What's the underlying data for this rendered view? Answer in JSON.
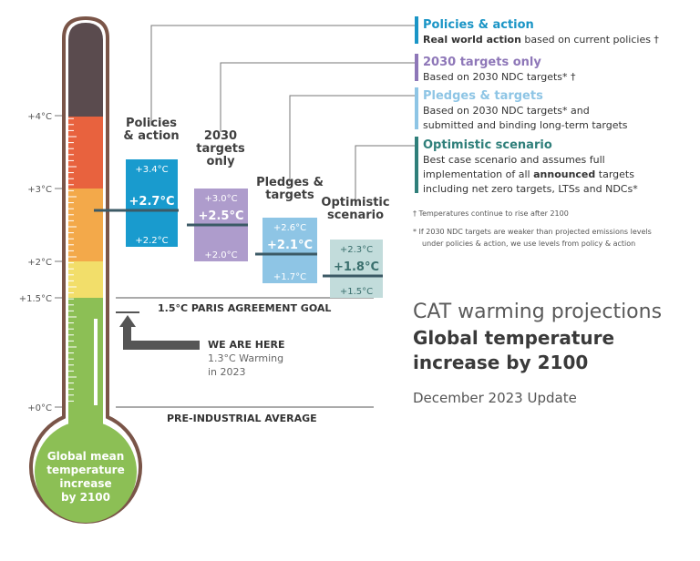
{
  "thermometer": {
    "ticks": [
      {
        "label": "+4°C",
        "t": 4.0
      },
      {
        "label": "+3°C",
        "t": 3.0
      },
      {
        "label": "+2°C",
        "t": 2.0
      },
      {
        "label": "+1.5°C",
        "t": 1.5
      },
      {
        "label": "+0°C",
        "t": 0.0
      }
    ],
    "bulb_lines": [
      "Global mean",
      "temperature",
      "increase",
      "by 2100"
    ],
    "colors": {
      "outline": "#7a5548",
      "top": "#5a4b4e",
      "red": "#e8623e",
      "orange": "#f3a94a",
      "yellow": "#f2de6a",
      "green": "#8cbf55"
    }
  },
  "reference_lines": {
    "paris_goal": "1.5°C PARIS AGREEMENT GOAL",
    "pre_industrial": "PRE-INDUSTRIAL AVERAGE"
  },
  "we_are_here": {
    "title": "WE ARE HERE",
    "line1": "1.3°C Warming",
    "line2": "in 2023",
    "value": 1.3
  },
  "chart_data": {
    "type": "range",
    "ylabel": "",
    "unit": "°C",
    "ylim": [
      0,
      5
    ],
    "scenarios": [
      {
        "title_lines": [
          "Policies",
          "& action"
        ],
        "central": 2.7,
        "low": 2.2,
        "high": 3.4,
        "central_label": "+2.7°C",
        "low_label": "+2.2°C",
        "high_label": "+3.4°C",
        "color": "#199bce",
        "text_color": "#ffffff"
      },
      {
        "title_lines": [
          "2030",
          "targets",
          "only"
        ],
        "central": 2.5,
        "low": 2.0,
        "high": 3.0,
        "central_label": "+2.5°C",
        "low_label": "+2.0°C",
        "high_label": "+3.0°C",
        "color": "#ae9ccc",
        "text_color": "#ffffff"
      },
      {
        "title_lines": [
          "Pledges &",
          "targets"
        ],
        "central": 2.1,
        "low": 1.7,
        "high": 2.6,
        "central_label": "+2.1°C",
        "low_label": "+1.7°C",
        "high_label": "+2.6°C",
        "color": "#8ec5e5",
        "text_color": "#ffffff"
      },
      {
        "title_lines": [
          "Optimistic",
          "scenario"
        ],
        "central": 1.8,
        "low": 1.5,
        "high": 2.3,
        "central_label": "+1.8°C",
        "low_label": "+1.5°C",
        "high_label": "+2.3°C",
        "color": "#c2dcdb",
        "text_color": "#3a6f6d"
      }
    ]
  },
  "legend": [
    {
      "title": "Policies & action",
      "color": "#1a95c6",
      "lines": [
        [
          {
            "t": "Real world action",
            "b": true
          },
          {
            "t": " based on current policies †",
            "b": false
          }
        ]
      ]
    },
    {
      "title": "2030 targets only",
      "color": "#8e77b8",
      "lines": [
        [
          {
            "t": "Based on 2030 NDC targets* †",
            "b": false
          }
        ]
      ]
    },
    {
      "title": "Pledges & targets",
      "color": "#8ec5e5",
      "lines": [
        [
          {
            "t": "Based on 2030 NDC targets* and",
            "b": false
          }
        ],
        [
          {
            "t": "submitted and binding long-term targets",
            "b": false
          }
        ]
      ]
    },
    {
      "title": "Optimistic scenario",
      "color": "#2f7f7a",
      "lines": [
        [
          {
            "t": "Best case scenario and assumes full",
            "b": false
          }
        ],
        [
          {
            "t": "implementation of all ",
            "b": false
          },
          {
            "t": "announced",
            "b": true
          },
          {
            "t": " targets",
            "b": false
          }
        ],
        [
          {
            "t": "including net zero targets, LTSs and NDCs*",
            "b": false
          }
        ]
      ]
    }
  ],
  "footnotes": [
    "†  Temperatures continue to rise after 2100",
    "*  If 2030 NDC targets are weaker than projected emissions levels",
    "under policies & action, we use levels from policy & action"
  ],
  "heading": {
    "line1": "CAT warming projections",
    "line2": "Global temperature",
    "line3": "increase by 2100",
    "update": "December 2023 Update"
  }
}
